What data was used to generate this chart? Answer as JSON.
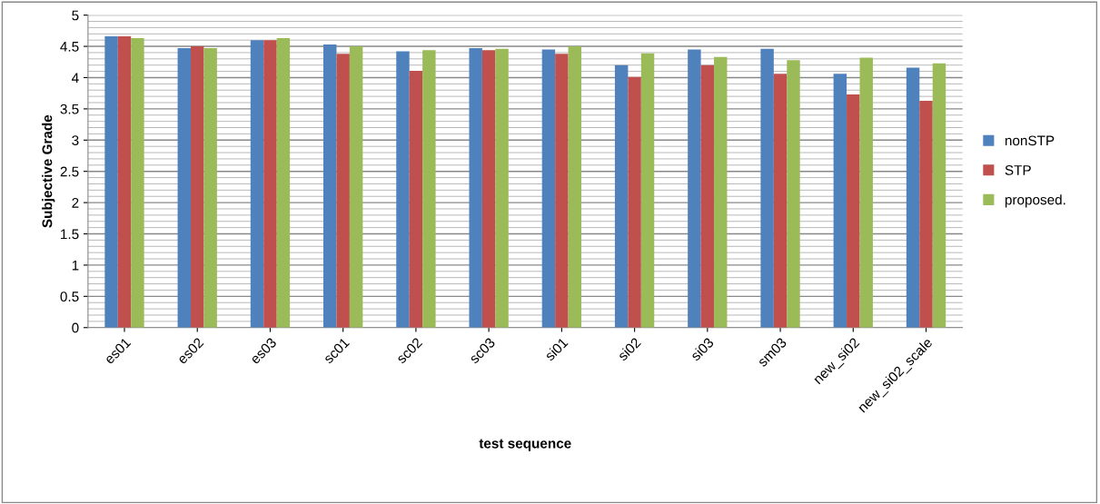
{
  "chart_data": {
    "type": "bar",
    "xlabel": "test sequence",
    "ylabel": "Subjective Grade",
    "categories": [
      "es01",
      "es02",
      "es03",
      "sc01",
      "sc02",
      "sc03",
      "si01",
      "si02",
      "si03",
      "sm03",
      "new_si02",
      "new_si02_scale"
    ],
    "series": [
      {
        "name": "nonSTP",
        "color": "#4f81bd",
        "values": [
          4.66,
          4.47,
          4.6,
          4.53,
          4.42,
          4.47,
          4.45,
          4.2,
          4.45,
          4.46,
          4.06,
          4.16
        ]
      },
      {
        "name": "STP",
        "color": "#c0504d",
        "values": [
          4.66,
          4.5,
          4.6,
          4.38,
          4.11,
          4.44,
          4.38,
          4.01,
          4.2,
          4.06,
          3.73,
          3.63
        ]
      },
      {
        "name": "proposed.",
        "color": "#9bbb59",
        "values": [
          4.63,
          4.47,
          4.63,
          4.5,
          4.44,
          4.46,
          4.5,
          4.39,
          4.33,
          4.28,
          4.32,
          4.23
        ]
      }
    ],
    "ylim": [
      0,
      5
    ],
    "yticks": [
      0,
      0.5,
      1,
      1.5,
      2,
      2.5,
      3,
      3.5,
      4,
      4.5,
      5
    ],
    "grid": "y",
    "legend": "right"
  }
}
